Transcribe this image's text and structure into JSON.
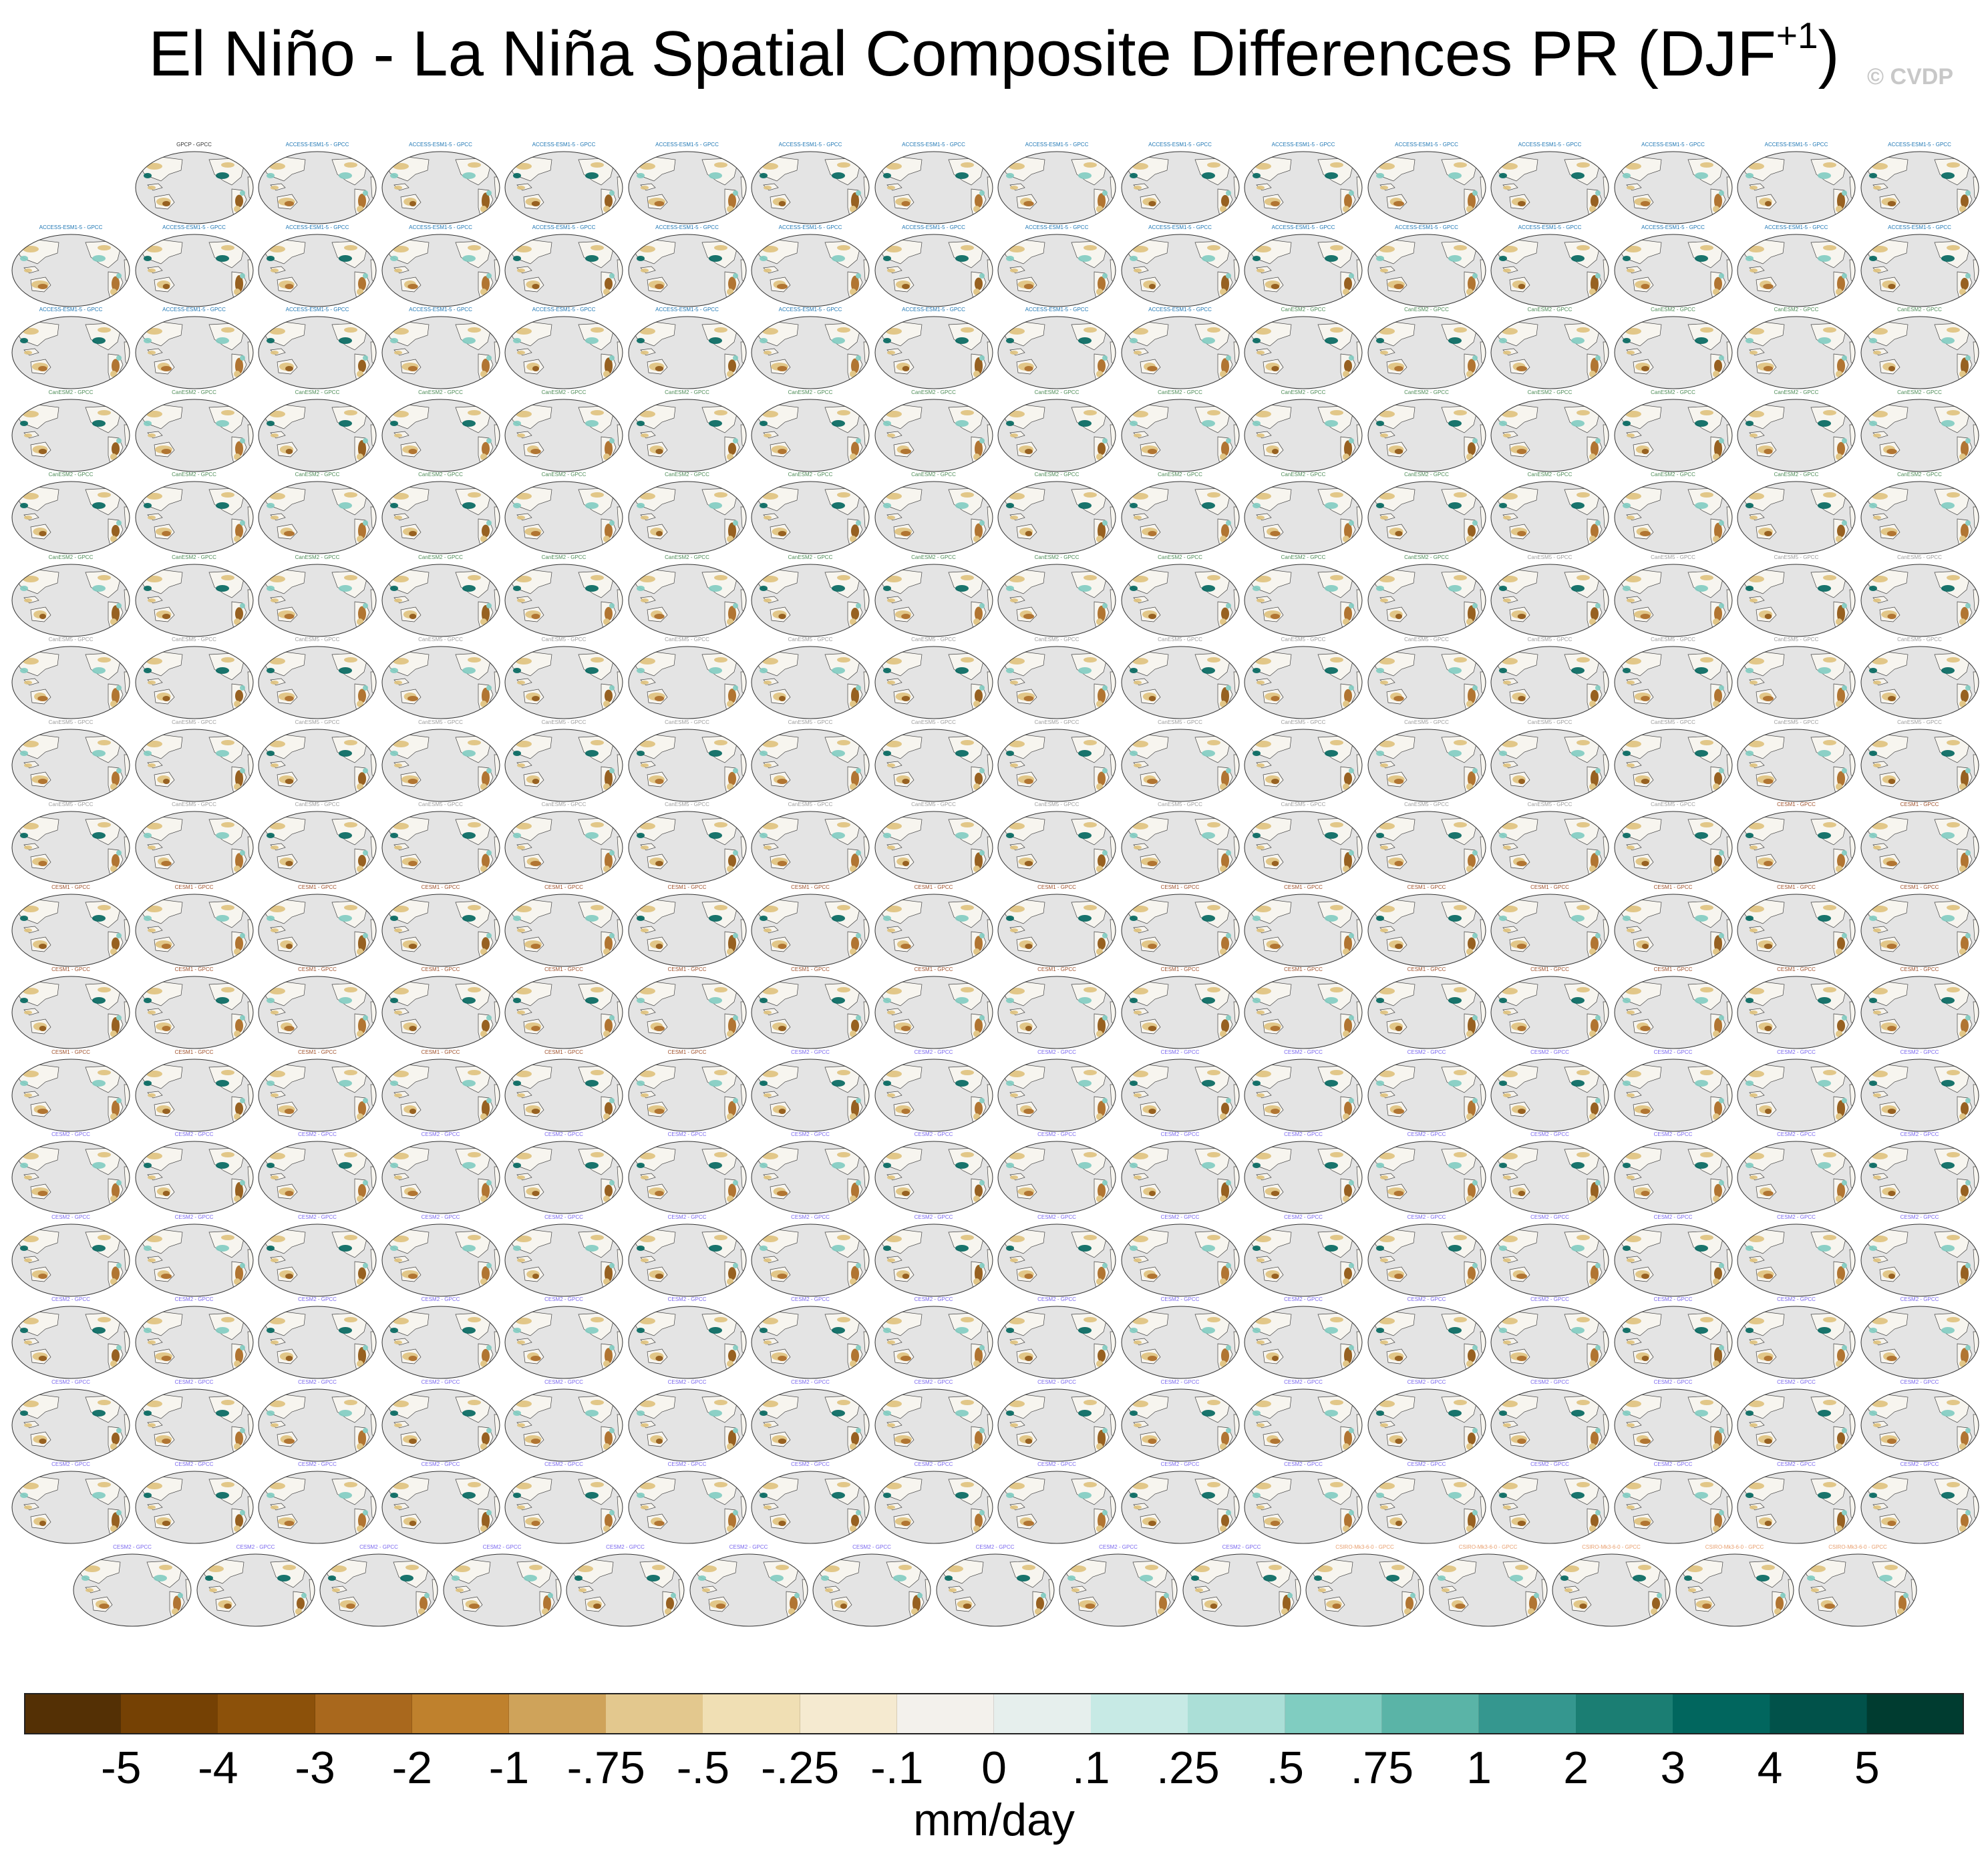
{
  "title": {
    "main": "El Niño - La Niña Spatial Composite Differences PR (DJF",
    "superscript": "+1",
    "close": ")"
  },
  "watermark": "© CVDP",
  "panels": {
    "rows": 18,
    "columns": 16,
    "reference_label": "GPCP - GPCC",
    "ensembles": [
      {
        "label": "ACCESS-ESM1-5 - GPCC",
        "color": "#1f77b4",
        "count": 40
      },
      {
        "label": "CanESM2 - GPCC",
        "color": "#4d8c57",
        "count": 50
      },
      {
        "label": "CanESM5 - GPCC",
        "color": "#9e9e9e",
        "count": 50
      },
      {
        "label": "CESM1 - GPCC",
        "color": "#a0522d",
        "count": 40
      },
      {
        "label": "CESM2 - GPCC",
        "color": "#7b68ee",
        "count": 100
      },
      {
        "label": "CSIRO-Mk3-6-0 - GPCC",
        "color": "#e8a070",
        "count": 30
      }
    ],
    "colors": {
      "ocean": "#e4e4e4",
      "land": "#f7f5ef",
      "coast": "#444444",
      "dry_strong": "#8c510a",
      "dry": "#dfc27d",
      "wet": "#80cdc1",
      "wet_strong": "#01665e"
    }
  },
  "colorbar": {
    "colors": [
      "#543005",
      "#754104",
      "#8c510a",
      "#a9681d",
      "#bf812d",
      "#cfa35a",
      "#e3c88e",
      "#f0dfb4",
      "#f5ead0",
      "#f3f1ec",
      "#e6efed",
      "#c7eae5",
      "#abdfd7",
      "#80cdc1",
      "#5ab4a7",
      "#35978f",
      "#1b7e73",
      "#01665e",
      "#01524a",
      "#003c30"
    ],
    "tick_labels": [
      "-5",
      "-4",
      "-3",
      "-2",
      "-1",
      "-.75",
      "-.5",
      "-.25",
      "-.1",
      "0",
      ".1",
      ".25",
      ".5",
      ".75",
      "1",
      "2",
      "3",
      "4",
      "5"
    ],
    "units": "mm/day"
  }
}
